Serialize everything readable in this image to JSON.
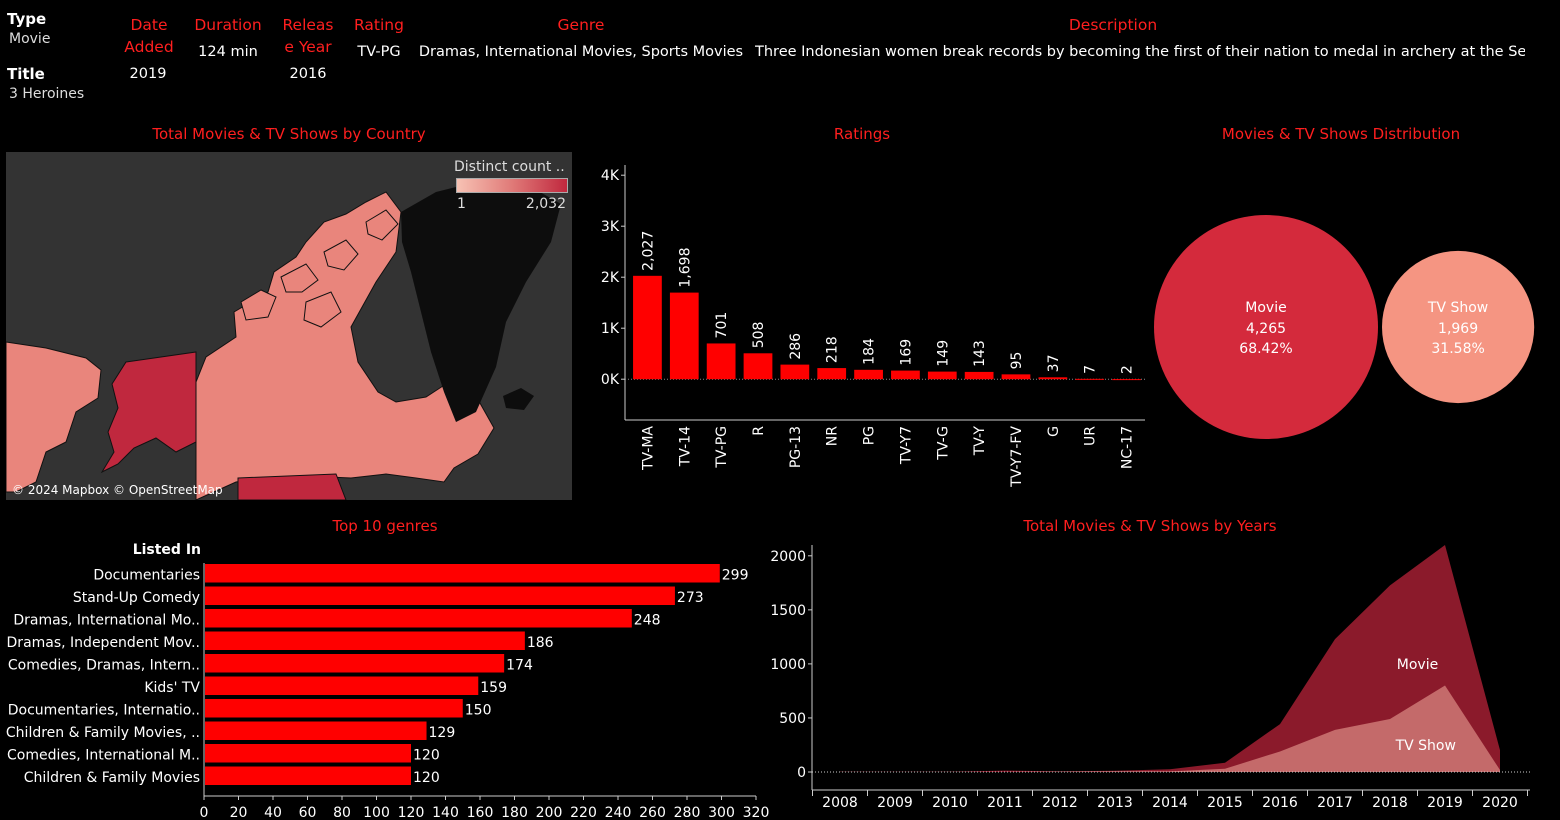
{
  "detail": {
    "type_label": "Type",
    "type_value": "Movie",
    "title_label": "Title",
    "title_value": "3 Heroines",
    "columns": [
      {
        "head": "Date Added",
        "value": "2019"
      },
      {
        "head": "Duration",
        "value": "124 min"
      },
      {
        "head": "Release Year",
        "value": "2016"
      },
      {
        "head": "Rating",
        "value": "TV-PG"
      },
      {
        "head": "Genre",
        "value": "Dramas, International Movies, Sports Movies"
      },
      {
        "head": "Description",
        "value": "Three Indonesian women break records by becoming the first of their nation to medal in archery at the Seoul .."
      }
    ]
  },
  "map_panel": {
    "title": "Total Movies & TV Shows by Country",
    "legend_title": "Distinct count ..",
    "legend_min": "1",
    "legend_max": "2,032",
    "attribution": "© 2024 Mapbox © OpenStreetMap",
    "colors": {
      "water": "#333333",
      "land": "#0d0d0d",
      "low": "#f7c2b4",
      "mid": "#e07a78",
      "high": "#c0283e"
    }
  },
  "ratings_panel": {
    "title": "Ratings",
    "chart_data": {
      "type": "bar",
      "categories": [
        "TV-MA",
        "TV-14",
        "TV-PG",
        "R",
        "PG-13",
        "NR",
        "PG",
        "TV-Y7",
        "TV-G",
        "TV-Y",
        "TV-Y7-FV",
        "G",
        "UR",
        "NC-17"
      ],
      "values": [
        2027,
        1698,
        701,
        508,
        286,
        218,
        184,
        169,
        149,
        143,
        95,
        37,
        7,
        2
      ],
      "value_labels": [
        "2,027",
        "1,698",
        "701",
        "508",
        "286",
        "218",
        "184",
        "169",
        "149",
        "143",
        "95",
        "37",
        "7",
        "2"
      ],
      "ylim": [
        -800,
        4200
      ],
      "yticks": [
        0,
        1000,
        2000,
        3000,
        4000
      ],
      "ytick_labels": [
        "0K",
        "1K",
        "2K",
        "3K",
        "4K"
      ],
      "color": "#ff0000"
    }
  },
  "distribution_panel": {
    "title": "Movies & TV Shows Distribution",
    "chart_data": {
      "type": "pie",
      "items": [
        {
          "name": "Movie",
          "count": 4265,
          "count_label": "4,265",
          "pct_label": "68.42%",
          "color": "#d42a3c"
        },
        {
          "name": "TV Show",
          "count": 1969,
          "count_label": "1,969",
          "pct_label": "31.58%",
          "color": "#f59582"
        }
      ]
    }
  },
  "genres_panel": {
    "title": "Top 10 genres",
    "axis_header": "Listed In",
    "chart_data": {
      "type": "bar",
      "orientation": "horizontal",
      "categories": [
        "Documentaries",
        "Stand-Up Comedy",
        "Dramas, International Mo..",
        "Dramas, Independent Mov..",
        "Comedies, Dramas, Intern..",
        "Kids' TV",
        "Documentaries, Internatio..",
        "Children & Family Movies, ..",
        "Comedies, International M..",
        "Children & Family Movies"
      ],
      "values": [
        299,
        273,
        248,
        186,
        174,
        159,
        150,
        129,
        120,
        120
      ],
      "xlim": [
        0,
        320
      ],
      "xticks": [
        0,
        20,
        40,
        60,
        80,
        100,
        120,
        140,
        160,
        180,
        200,
        220,
        240,
        260,
        280,
        300,
        320
      ],
      "color": "#ff0000"
    }
  },
  "years_panel": {
    "title": "Total Movies & TV Shows by Years",
    "chart_data": {
      "type": "area",
      "x": [
        2008,
        2009,
        2010,
        2011,
        2012,
        2013,
        2014,
        2015,
        2016,
        2017,
        2018,
        2019,
        2020
      ],
      "series": [
        {
          "name": "Movie",
          "values": [
            1,
            2,
            1,
            13,
            3,
            6,
            19,
            56,
            253,
            839,
            1237,
            1424,
            184
          ],
          "color": "#8b1a2b"
        },
        {
          "name": "TV Show",
          "values": [
            1,
            0,
            1,
            0,
            3,
            6,
            6,
            30,
            190,
            390,
            490,
            800,
            18
          ],
          "color": "#c46a6a"
        }
      ],
      "ylim": [
        0,
        2100
      ],
      "yticks": [
        0,
        500,
        1000,
        1500,
        2000
      ]
    }
  }
}
